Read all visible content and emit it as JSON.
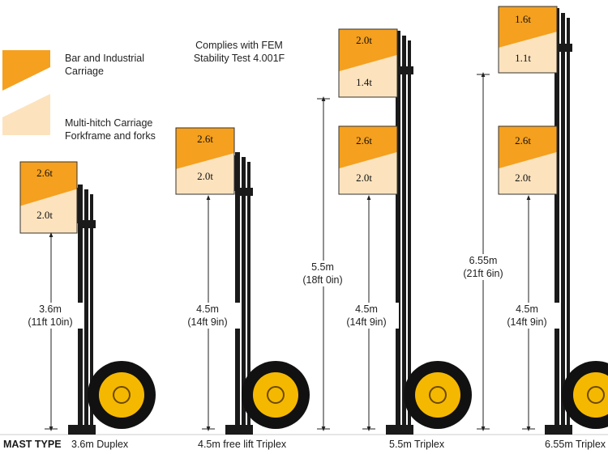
{
  "legend": {
    "bar_label": "Bar and Industrial\nCarriage",
    "multi_label": "Multi-hitch Carriage\nForkframe and forks"
  },
  "note": "Complies with FEM\nStability Test 4.001F",
  "colors": {
    "bar": "#F5A01E",
    "multi": "#FCE3BE",
    "mast": "#1a1a1a",
    "wheel": "#F5B800"
  },
  "mast_type_label": "MAST TYPE",
  "masts": [
    {
      "name": "3.6m Duplex",
      "loads": [
        {
          "bar": "2.6t",
          "multi": "2.0t"
        }
      ],
      "dimensions": [
        {
          "value": "3.6m\n(11ft 10in)"
        }
      ]
    },
    {
      "name": "4.5m free lift Triplex",
      "loads": [
        {
          "bar": "2.6t",
          "multi": "2.0t"
        }
      ],
      "dimensions": [
        {
          "value": "4.5m\n(14ft 9in)"
        }
      ]
    },
    {
      "name": "5.5m Triplex",
      "loads": [
        {
          "bar": "2.0t",
          "multi": "1.4t"
        },
        {
          "bar": "2.6t",
          "multi": "2.0t"
        }
      ],
      "dimensions": [
        {
          "value": "5.5m\n(18ft 0in)"
        },
        {
          "value": "4.5m\n(14ft 9in)"
        }
      ]
    },
    {
      "name": "6.55m Triplex",
      "loads": [
        {
          "bar": "1.6t",
          "multi": "1.1t"
        },
        {
          "bar": "2.6t",
          "multi": "2.0t"
        }
      ],
      "dimensions": [
        {
          "value": "6.55m\n(21ft 6in)"
        },
        {
          "value": "4.5m\n(14ft 9in)"
        }
      ]
    }
  ]
}
